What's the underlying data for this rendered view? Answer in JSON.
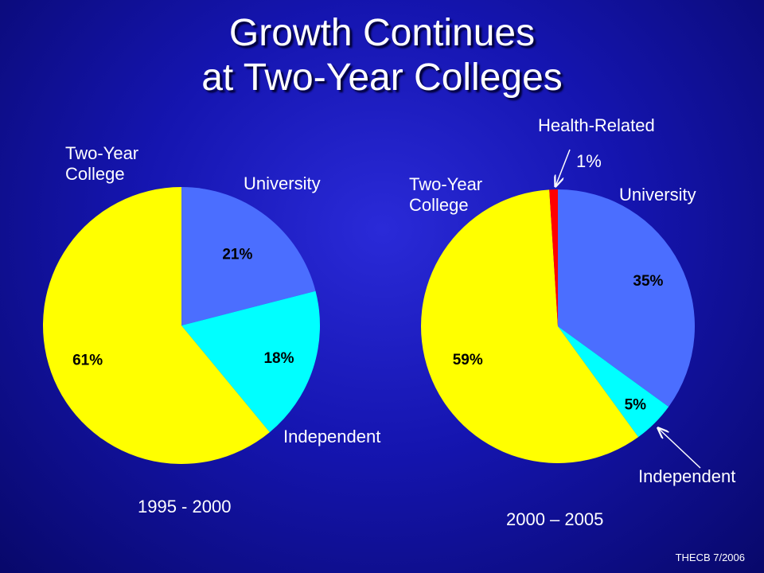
{
  "slide": {
    "title_line1": "Growth Continues",
    "title_line2": "at Two-Year Colleges",
    "footer": "THECB 7/2006"
  },
  "chart_data": [
    {
      "type": "pie",
      "period_label": "1995 - 2000",
      "slices": [
        {
          "name": "University",
          "value": 21,
          "label": "21%",
          "color": "#4b6eff"
        },
        {
          "name": "Independent",
          "value": 18,
          "label": "18%",
          "color": "#00ffff"
        },
        {
          "name": "Two-Year College",
          "value": 61,
          "label": "61%",
          "color": "#ffff00"
        }
      ],
      "category_labels": {
        "two_year_line1": "Two-Year",
        "two_year_line2": "College",
        "university": "University",
        "independent": "Independent"
      }
    },
    {
      "type": "pie",
      "period_label": "2000 – 2005",
      "slices": [
        {
          "name": "University",
          "value": 35,
          "label": "35%",
          "color": "#4b6eff"
        },
        {
          "name": "Independent",
          "value": 5,
          "label": "5%",
          "color": "#00ffff"
        },
        {
          "name": "Two-Year College",
          "value": 59,
          "label": "59%",
          "color": "#ffff00"
        },
        {
          "name": "Health-Related",
          "value": 1,
          "label": "1%",
          "color": "#ff0000"
        }
      ],
      "category_labels": {
        "two_year_line1": "Two-Year",
        "two_year_line2": "College",
        "university": "University",
        "independent": "Independent",
        "health_related": "Health-Related"
      }
    }
  ]
}
